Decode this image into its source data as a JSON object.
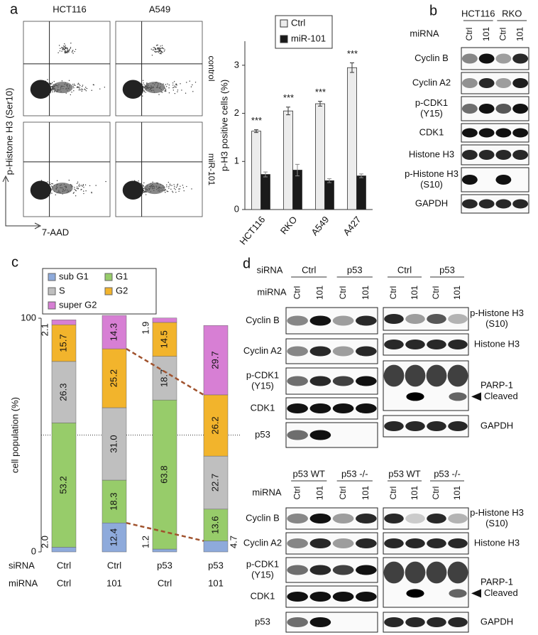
{
  "panel_labels": [
    "a",
    "b",
    "c",
    "d"
  ],
  "flow": {
    "columns": [
      "HCT116",
      "A549"
    ],
    "rows": [
      "control",
      "miR-101"
    ],
    "ylabel": "p-Histone H3 (Ser10)",
    "xlabel": "7-AAD"
  },
  "chart_data": [
    {
      "type": "bar",
      "ylabel": "p-H3 positive cells (%)",
      "categories": [
        "HCT116",
        "RKO",
        "A549",
        "A427"
      ],
      "series": [
        {
          "name": "Ctrl",
          "color": "#ececec",
          "values": [
            1.63,
            2.05,
            2.2,
            2.95
          ],
          "errors": [
            0.03,
            0.08,
            0.05,
            0.1
          ]
        },
        {
          "name": "miR-101",
          "color": "#1a1a1a",
          "values": [
            0.73,
            0.82,
            0.6,
            0.7
          ],
          "errors": [
            0.05,
            0.12,
            0.04,
            0.04
          ]
        }
      ],
      "annotations": [
        "***",
        "***",
        "***",
        "***"
      ],
      "ylim": [
        0,
        3.5
      ],
      "yticks": [
        0,
        1,
        2,
        3
      ],
      "legend": "top"
    },
    {
      "type": "stacked_bar",
      "ylabel": "cell population (%)",
      "row_labels": [
        "siRNA",
        "miRNA"
      ],
      "categories": [
        "Ctrl",
        "Ctrl",
        "p53",
        "p53"
      ],
      "categories2": [
        "Ctrl",
        "101",
        "Ctrl",
        "101"
      ],
      "series": [
        {
          "name": "sub G1",
          "color": "#8eaadb",
          "values": [
            2.0,
            12.4,
            1.2,
            4.7
          ],
          "value_labels": [
            "2.0",
            "12.4",
            "1.2",
            "4.7"
          ]
        },
        {
          "name": "G1",
          "color": "#97cc6a",
          "values": [
            53.2,
            18.3,
            63.8,
            13.6
          ],
          "value_labels": [
            "53.2",
            "18.3",
            "63.8",
            "13.6"
          ]
        },
        {
          "name": "S",
          "color": "#bfbfbf",
          "values": [
            26.3,
            31.0,
            18.7,
            22.7
          ],
          "value_labels": [
            "26.3",
            "31.0",
            "18.7",
            "22.7"
          ]
        },
        {
          "name": "G2",
          "color": "#f2b42c",
          "values": [
            15.7,
            25.2,
            14.5,
            26.2
          ],
          "value_labels": [
            "15.7",
            "25.2",
            "14.5",
            "26.2"
          ]
        },
        {
          "name": "super G2",
          "color": "#d77fd4",
          "values": [
            2.1,
            14.3,
            1.9,
            29.7
          ],
          "value_labels": [
            "2.1",
            "14.3",
            "1.9",
            "29.7"
          ]
        }
      ],
      "ylim": [
        0,
        100
      ],
      "yticks": [
        0,
        100
      ],
      "reference_line": 50,
      "legend": "top"
    }
  ],
  "blot_b": {
    "groups": [
      "HCT116",
      "RKO"
    ],
    "miRNA_label": "miRNA",
    "lanes": [
      "Ctrl",
      "101",
      "Ctrl",
      "101"
    ],
    "rows": [
      [
        "Cyclin B"
      ],
      [
        "Cyclin A2"
      ],
      [
        "p-CDK1",
        "(Y15)"
      ],
      [
        "CDK1"
      ],
      [
        "Histone H3"
      ],
      [
        "p-Histone H3",
        "(S10)"
      ],
      [
        "GAPDH"
      ]
    ]
  },
  "blot_d_top": {
    "siRNA_label": "siRNA",
    "miRNA_label": "miRNA",
    "left": {
      "groups": [
        "Ctrl",
        "p53"
      ],
      "lanes": [
        "Ctrl",
        "101",
        "Ctrl",
        "101"
      ],
      "rows": [
        [
          "Cyclin B"
        ],
        [
          "Cyclin A2"
        ],
        [
          "p-CDK1",
          "(Y15)"
        ],
        [
          "CDK1"
        ],
        [
          "p53"
        ]
      ]
    },
    "right": {
      "groups": [
        "Ctrl",
        "p53"
      ],
      "lanes": [
        "Ctrl",
        "101",
        "Ctrl",
        "101"
      ],
      "rows": [
        [
          "p-Histone H3",
          "(S10)"
        ],
        [
          "Histone H3"
        ],
        [
          "PARP-1"
        ],
        [
          "GAPDH"
        ]
      ],
      "cleaved": "Cleaved"
    }
  },
  "blot_d_bottom": {
    "miRNA_label": "miRNA",
    "left": {
      "groups": [
        "p53 WT",
        "p53 -/-"
      ],
      "lanes": [
        "Ctrl",
        "101",
        "Ctrl",
        "101"
      ],
      "rows": [
        [
          "Cyclin B"
        ],
        [
          "Cyclin A2"
        ],
        [
          "p-CDK1",
          "(Y15)"
        ],
        [
          "CDK1"
        ],
        [
          "p53"
        ]
      ]
    },
    "right": {
      "groups": [
        "p53 WT",
        "p53 -/-"
      ],
      "lanes": [
        "Ctrl",
        "101",
        "Ctrl",
        "101"
      ],
      "rows": [
        [
          "p-Histone H3",
          "(S10)"
        ],
        [
          "Histone H3"
        ],
        [
          "PARP-1"
        ],
        [
          "GAPDH"
        ]
      ],
      "cleaved": "Cleaved"
    }
  }
}
